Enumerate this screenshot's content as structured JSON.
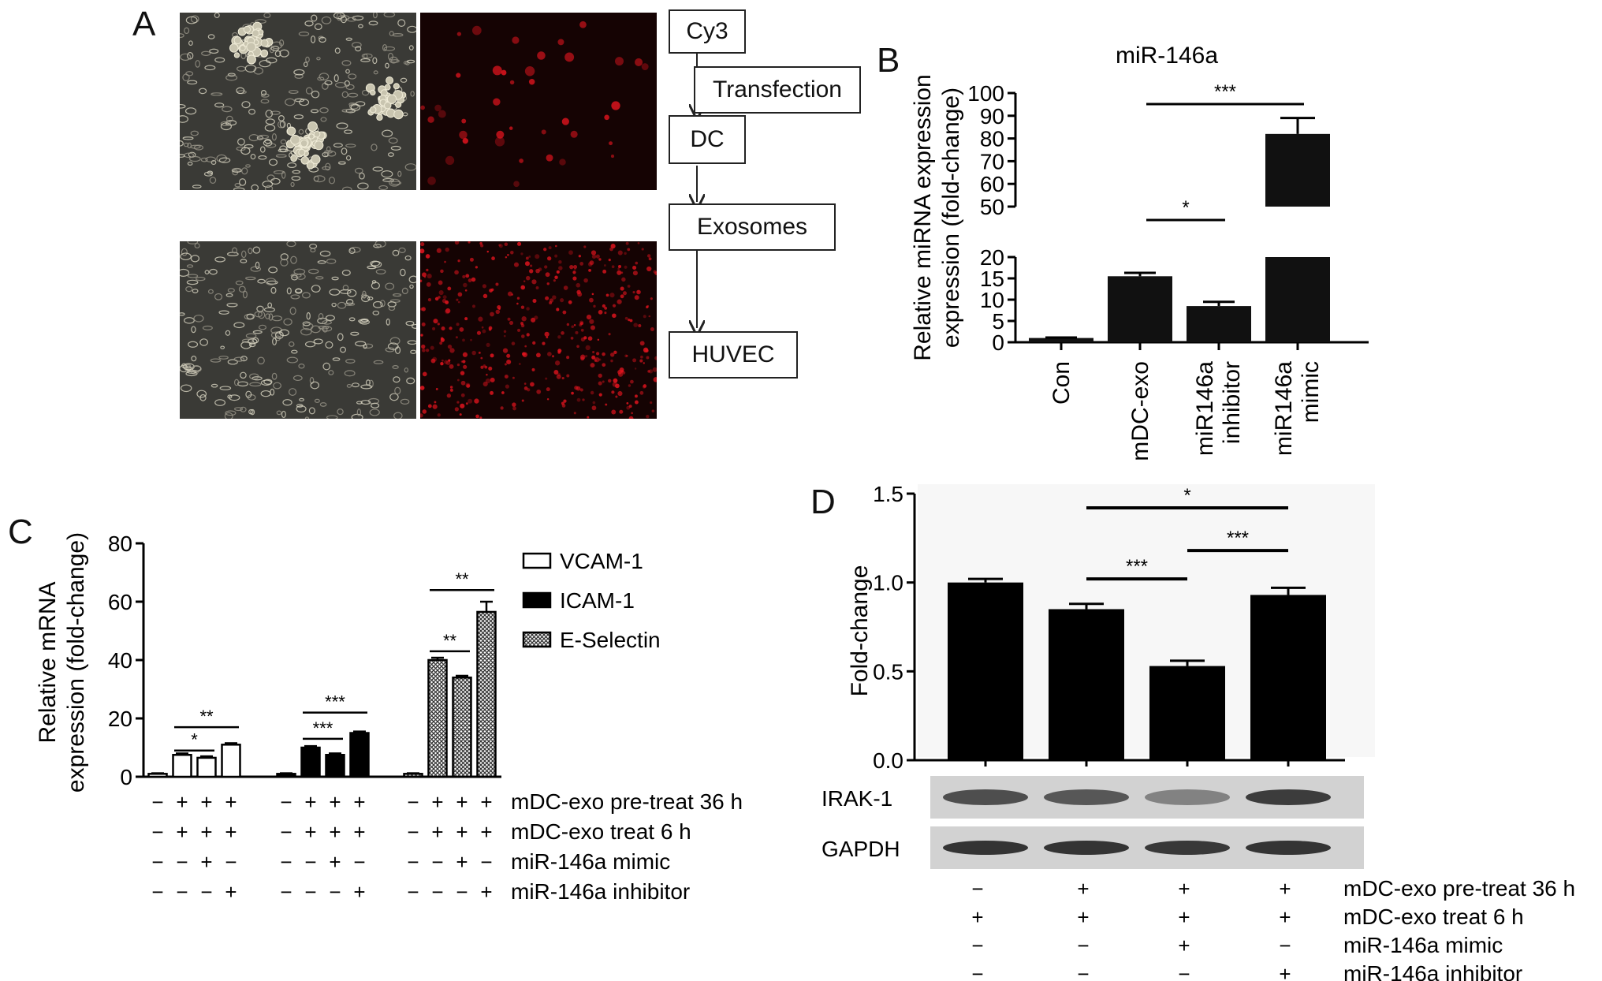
{
  "panel_labels": {
    "a": "A",
    "b": "B",
    "c": "C",
    "d": "D"
  },
  "panel_a": {
    "images": [
      {
        "name": "brightfield-dc-image",
        "style": "phase"
      },
      {
        "name": "cy3-dc-image",
        "style": "red-sparse"
      },
      {
        "name": "brightfield-huvec-image",
        "style": "phase"
      },
      {
        "name": "cy3-huvec-image",
        "style": "red-dense"
      }
    ],
    "flow": {
      "cy3": "Cy3",
      "transfection": "Transfection",
      "dc": "DC",
      "exosomes": "Exosomes",
      "huvec": "HUVEC"
    }
  },
  "chart_data": [
    {
      "panel": "B",
      "type": "bar",
      "title": "miR-146a",
      "ylabel": "Relative miRNA expression (fold-change)",
      "categories": [
        "Con",
        "mDC-exo",
        "miR146a inhibitor",
        "miR146a mimic"
      ],
      "values": [
        1,
        15.5,
        8.5,
        82
      ],
      "errors": [
        0.1,
        0.8,
        1.0,
        7
      ],
      "y_axis_broken": true,
      "y_break": [
        20,
        50
      ],
      "yticks_lower": [
        "0",
        "5",
        "10",
        "15",
        "20"
      ],
      "yticks_upper": [
        "50",
        "60",
        "70",
        "80",
        "90",
        "100"
      ],
      "significance": [
        {
          "from": 1,
          "to": 2,
          "label": "*"
        },
        {
          "from": 1,
          "to": 3,
          "label": "***"
        }
      ],
      "color": "#111111"
    },
    {
      "panel": "C",
      "type": "bar",
      "ylabel": "Relative mRNA expression (fold-change)",
      "ylim": [
        0,
        80
      ],
      "yticks": [
        "0",
        "20",
        "40",
        "60",
        "80"
      ],
      "legend": [
        {
          "name": "VCAM-1",
          "fill": "#ffffff"
        },
        {
          "name": "ICAM-1",
          "fill": "#000000"
        },
        {
          "name": "E-Selectin",
          "fill": "#bbbbbb"
        }
      ],
      "series": [
        {
          "name": "VCAM-1",
          "values": [
            1,
            7.5,
            6.5,
            11
          ],
          "errors": [
            0.2,
            0.5,
            0.5,
            0.5
          ]
        },
        {
          "name": "ICAM-1",
          "values": [
            1,
            10,
            7.5,
            15
          ],
          "errors": [
            0.2,
            0.5,
            0.5,
            0.5
          ]
        },
        {
          "name": "E-Selectin",
          "values": [
            1,
            40,
            34,
            56.5
          ],
          "errors": [
            0.2,
            0.8,
            0.6,
            3.5
          ]
        }
      ],
      "significance": [
        {
          "series": 0,
          "from": 1,
          "to": 2,
          "label": "*",
          "level": 9
        },
        {
          "series": 0,
          "from": 1,
          "to": 3,
          "label": "**",
          "level": 17
        },
        {
          "series": 1,
          "from": 1,
          "to": 2,
          "label": "***",
          "level": 13
        },
        {
          "series": 1,
          "from": 1,
          "to": 3,
          "label": "***",
          "level": 22
        },
        {
          "series": 2,
          "from": 1,
          "to": 2,
          "label": "**",
          "level": 43
        },
        {
          "series": 2,
          "from": 1,
          "to": 3,
          "label": "**",
          "level": 64
        }
      ],
      "conditions": [
        {
          "label": "mDC-exo pre-treat 36 h",
          "signs": [
            "−",
            "+",
            "+",
            "+"
          ]
        },
        {
          "label": "mDC-exo treat 6 h",
          "signs": [
            "−",
            "+",
            "+",
            "+"
          ]
        },
        {
          "label": "miR-146a mimic",
          "signs": [
            "−",
            "−",
            "+",
            "−"
          ]
        },
        {
          "label": "miR-146a inhibitor",
          "signs": [
            "−",
            "−",
            "−",
            "+"
          ]
        }
      ]
    },
    {
      "panel": "D",
      "type": "bar",
      "ylabel": "Fold-change",
      "ylim": [
        0,
        1.5
      ],
      "yticks": [
        "0.0",
        "0.5",
        "1.0",
        "1.5"
      ],
      "values": [
        1.0,
        0.85,
        0.53,
        0.93
      ],
      "errors": [
        0.02,
        0.03,
        0.03,
        0.04
      ],
      "significance": [
        {
          "from": 1,
          "to": 2,
          "label": "***",
          "level": 1.02
        },
        {
          "from": 2,
          "to": 3,
          "label": "***",
          "level": 1.18
        },
        {
          "from": 1,
          "to": 3,
          "label": "*",
          "level": 1.42
        }
      ],
      "blots": [
        "IRAK-1",
        "GAPDH"
      ],
      "blot_intensity": {
        "IRAK-1": [
          0.75,
          0.7,
          0.45,
          0.85
        ],
        "GAPDH": [
          0.9,
          0.9,
          0.88,
          0.9
        ]
      },
      "conditions": [
        {
          "label": "mDC-exo pre-treat 36 h",
          "signs": [
            "−",
            "+",
            "+",
            "+"
          ]
        },
        {
          "label": "mDC-exo treat 6 h",
          "signs": [
            "+",
            "+",
            "+",
            "+"
          ]
        },
        {
          "label": "miR-146a mimic",
          "signs": [
            "−",
            "−",
            "+",
            "−"
          ]
        },
        {
          "label": "miR-146a inhibitor",
          "signs": [
            "−",
            "−",
            "−",
            "+"
          ]
        }
      ]
    }
  ]
}
